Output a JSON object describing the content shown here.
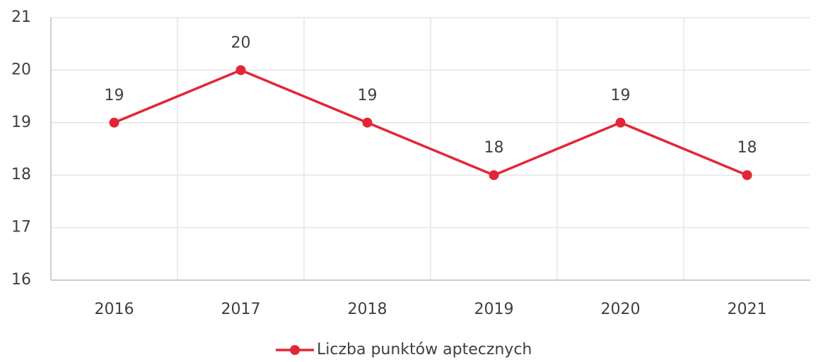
{
  "chart_data": {
    "type": "line",
    "categories": [
      "2016",
      "2017",
      "2018",
      "2019",
      "2020",
      "2021"
    ],
    "series": [
      {
        "name": "Liczba punktów aptecznych",
        "color": "#e32636",
        "values": [
          19,
          20,
          19,
          18,
          19,
          18
        ]
      }
    ],
    "ylim": [
      16,
      21
    ],
    "yticks": [
      16,
      17,
      18,
      19,
      20,
      21
    ],
    "grid": true,
    "legend": "bottom"
  }
}
